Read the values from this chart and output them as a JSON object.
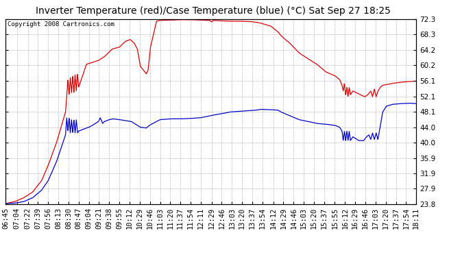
{
  "title": "Inverter Temperature (red)/Case Temperature (blue) (°C) Sat Sep 27 18:25",
  "copyright": "Copyright 2008 Cartronics.com",
  "background_color": "#ffffff",
  "plot_bg_color": "#ffffff",
  "grid_color": "#aaaaaa",
  "yticks": [
    23.8,
    27.9,
    31.9,
    35.9,
    40.0,
    44.0,
    48.1,
    52.1,
    56.1,
    60.2,
    64.2,
    68.3,
    72.3
  ],
  "xtick_labels": [
    "06:45",
    "07:04",
    "07:22",
    "07:39",
    "07:56",
    "08:13",
    "08:30",
    "08:47",
    "09:04",
    "09:21",
    "09:38",
    "09:55",
    "10:12",
    "10:29",
    "10:46",
    "11:03",
    "11:20",
    "11:37",
    "11:54",
    "12:11",
    "12:29",
    "12:46",
    "13:03",
    "13:20",
    "13:37",
    "13:54",
    "14:12",
    "14:29",
    "14:46",
    "15:03",
    "15:20",
    "15:37",
    "15:55",
    "16:12",
    "16:29",
    "16:46",
    "17:03",
    "17:20",
    "17:37",
    "17:54",
    "18:11"
  ],
  "red_line_color": "#dd0000",
  "blue_line_color": "#0000cc",
  "title_fontsize": 10,
  "copyright_fontsize": 6.5,
  "tick_fontsize": 7.5
}
